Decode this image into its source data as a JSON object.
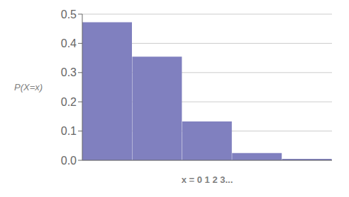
{
  "chart_data": {
    "type": "bar",
    "categories": [
      null,
      null,
      null,
      null,
      null
    ],
    "values": [
      0.4724,
      0.3543,
      0.1329,
      0.0249,
      0.0047
    ],
    "color": "#8080bf",
    "xlabel": "x = 0 1 2 3...",
    "ylabel": "P(X=x)",
    "ylim": [
      0,
      0.5
    ],
    "yticks": [
      {
        "value": 0,
        "label": "0.0"
      },
      0.1,
      0.2,
      0.3,
      0.4,
      0.5
    ],
    "grid": true,
    "tick_labels": "y"
  }
}
